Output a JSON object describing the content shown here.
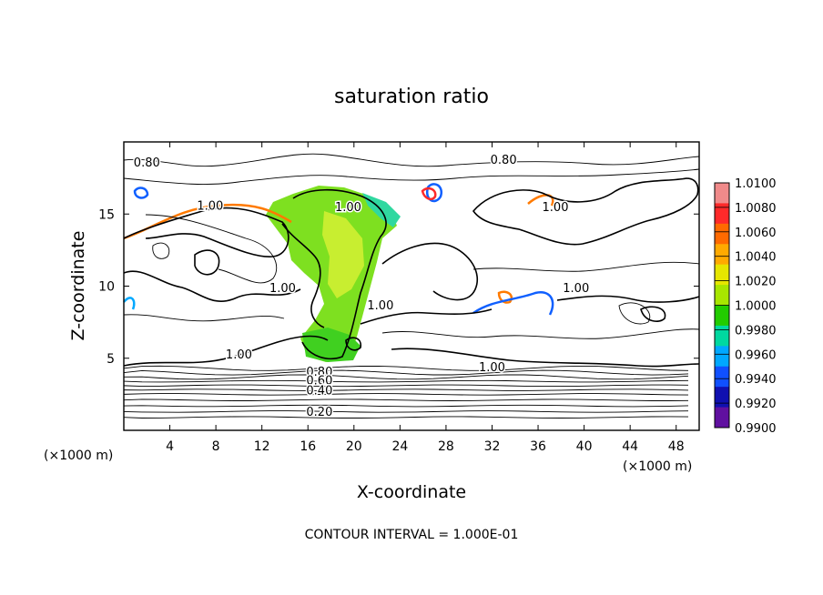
{
  "chart_data": {
    "type": "contour",
    "title": "saturation ratio",
    "xlabel": "X-coordinate",
    "ylabel": "Z-coordinate",
    "x_units_left": "(×1000 m)",
    "x_units_right": "(×1000 m)",
    "footer": "CONTOUR INTERVAL = 1.000E-01",
    "xlim": [
      0,
      50
    ],
    "ylim": [
      0,
      20
    ],
    "x_ticks": [
      {
        "value": 4,
        "label": "4"
      },
      {
        "value": 8,
        "label": "8"
      },
      {
        "value": 12,
        "label": "12"
      },
      {
        "value": 16,
        "label": "16"
      },
      {
        "value": 20,
        "label": "20"
      },
      {
        "value": 24,
        "label": "24"
      },
      {
        "value": 28,
        "label": "28"
      },
      {
        "value": 32,
        "label": "32"
      },
      {
        "value": 36,
        "label": "36"
      },
      {
        "value": 40,
        "label": "40"
      },
      {
        "value": 44,
        "label": "44"
      },
      {
        "value": 48,
        "label": "48"
      }
    ],
    "y_ticks": [
      {
        "value": 5,
        "label": "5"
      },
      {
        "value": 10,
        "label": "10"
      },
      {
        "value": 15,
        "label": "15"
      }
    ],
    "contour_interval": 0.1,
    "contour_labels": [
      {
        "x": 2.0,
        "z": 18.3,
        "label": "0.80"
      },
      {
        "x": 33.0,
        "z": 18.5,
        "label": "0.80"
      },
      {
        "x": 7.5,
        "z": 15.3,
        "label": "1.00"
      },
      {
        "x": 19.5,
        "z": 15.2,
        "label": "1.00"
      },
      {
        "x": 37.5,
        "z": 15.2,
        "label": "1.00"
      },
      {
        "x": 13.8,
        "z": 9.6,
        "label": "1.00"
      },
      {
        "x": 22.3,
        "z": 8.4,
        "label": "1.00"
      },
      {
        "x": 39.3,
        "z": 9.6,
        "label": "1.00"
      },
      {
        "x": 10.0,
        "z": 5.0,
        "label": "1.00"
      },
      {
        "x": 32.0,
        "z": 4.1,
        "label": "1.00"
      },
      {
        "x": 17.0,
        "z": 3.8,
        "label": "0.80"
      },
      {
        "x": 17.0,
        "z": 3.2,
        "label": "0.60"
      },
      {
        "x": 17.0,
        "z": 2.5,
        "label": "0.40"
      },
      {
        "x": 17.0,
        "z": 1.0,
        "label": "0.20"
      }
    ],
    "colorbar": {
      "levels": [
        "1.0100",
        "1.0080",
        "1.0060",
        "1.0040",
        "1.0020",
        "1.0000",
        "0.9980",
        "0.9960",
        "0.9940",
        "0.9920",
        "0.9900"
      ],
      "colors": [
        "#f08a8a",
        "#ff2a2a",
        "#ff6a00",
        "#ffaa00",
        "#e6e600",
        "#a8e600",
        "#22cc00",
        "#00d8a0",
        "#00a8ff",
        "#1050ff",
        "#1010b0",
        "#6010a0"
      ]
    }
  }
}
